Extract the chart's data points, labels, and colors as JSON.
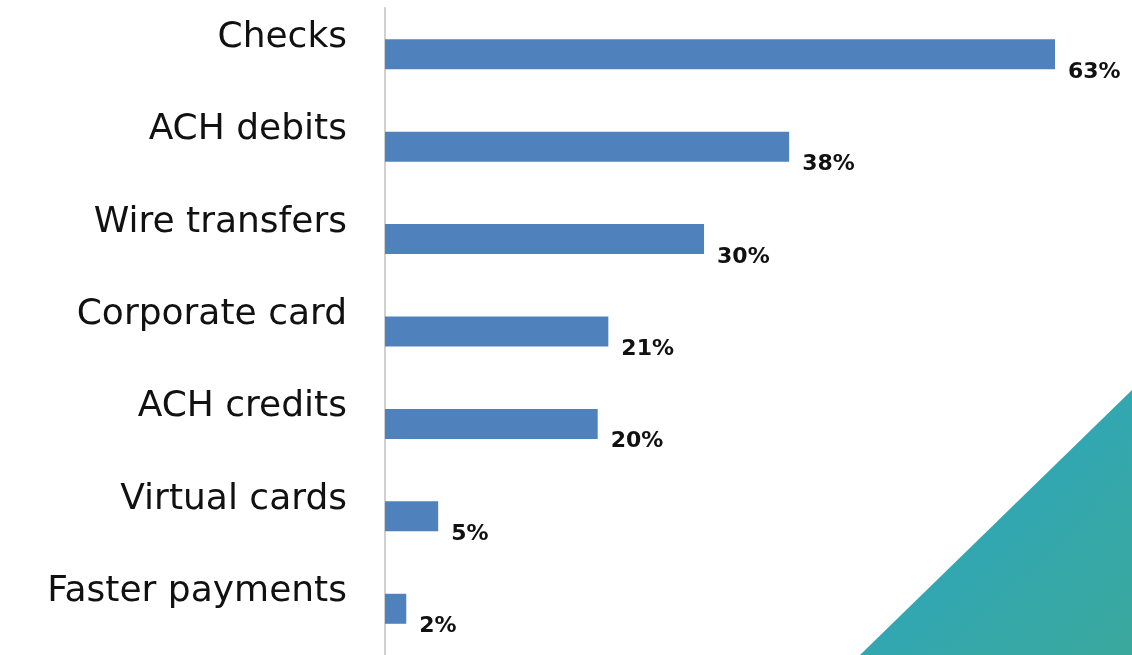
{
  "chart_data": {
    "type": "bar",
    "orientation": "horizontal",
    "categories": [
      "Checks",
      "ACH debits",
      "Wire transfers",
      "Corporate card",
      "ACH credits",
      "Virtual cards",
      "Faster payments"
    ],
    "values": [
      63,
      38,
      30,
      21,
      20,
      5,
      2
    ],
    "value_labels": [
      "63%",
      "38%",
      "30%",
      "21%",
      "20%",
      "5%",
      "2%"
    ],
    "color": "#4f81bd"
  }
}
